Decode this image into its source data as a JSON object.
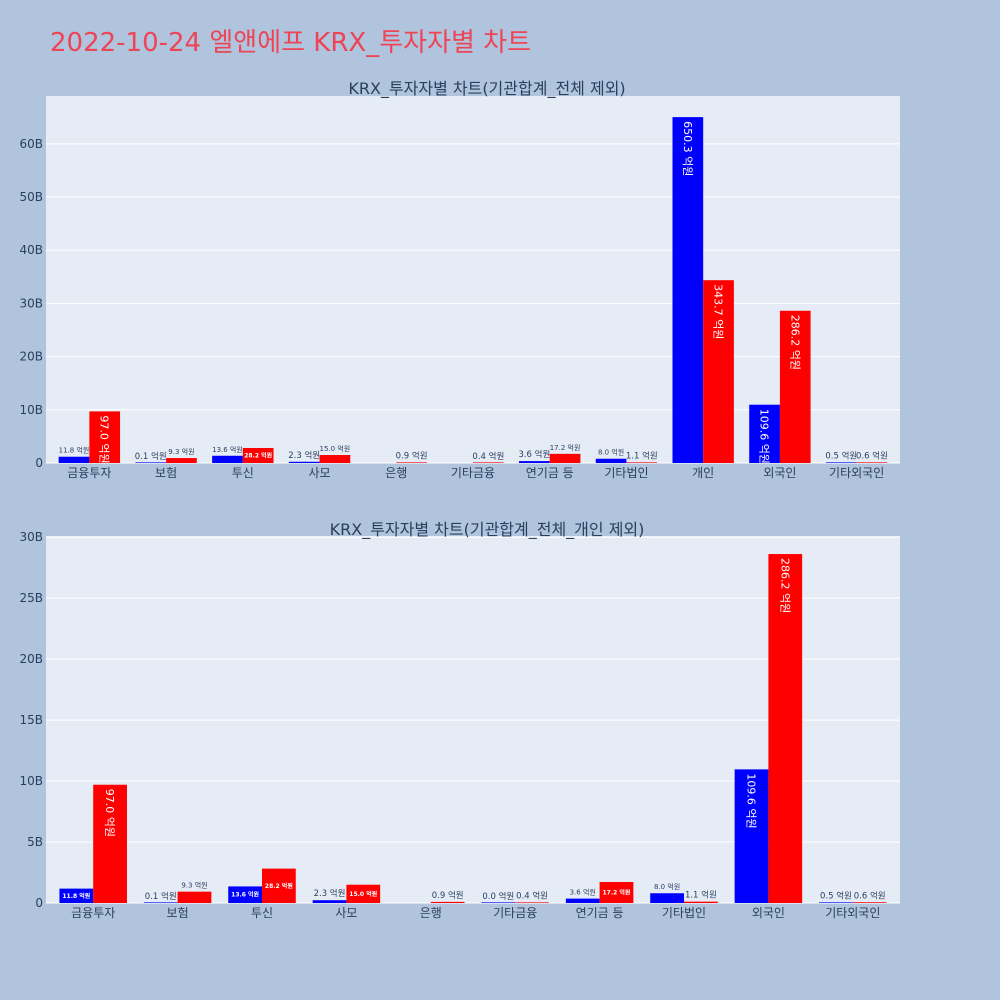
{
  "page_title": "2022-10-24 엘앤에프 KRX_투자자별 차트",
  "colors": {
    "background": "#b0c4de",
    "plot_bg": "#e5ecf6",
    "title": "#ee4455",
    "series_a": "#0000ff",
    "series_b": "#ff0000"
  },
  "chart_data": [
    {
      "type": "bar",
      "title": "KRX_투자자별 차트(기관합계_전체 제외)",
      "categories": [
        "금융투자",
        "보험",
        "투신",
        "사모",
        "은행",
        "기타금융",
        "연기금 등",
        "기타법인",
        "개인",
        "외국인",
        "기타외국인"
      ],
      "ylim": [
        0,
        69
      ],
      "yticks": [
        0,
        10,
        20,
        30,
        40,
        50,
        60
      ],
      "ytick_labels": [
        "0",
        "10B",
        "20B",
        "30B",
        "40B",
        "50B",
        "60B"
      ],
      "grid": true,
      "series": [
        {
          "values": [
            1.18,
            0.01,
            1.36,
            0.23,
            null,
            null,
            0.36,
            0.8,
            65.03,
            10.96,
            0.05
          ],
          "labels": [
            "11.8 억원",
            "0.1 억원",
            "13.6 억원",
            "2.3 억원",
            null,
            null,
            "3.6 억원",
            "8.0 억원",
            "650.3 억원",
            "109.6 억원",
            "0.5 억원"
          ]
        },
        {
          "values": [
            9.7,
            0.93,
            2.82,
            1.5,
            0.09,
            0.04,
            1.72,
            0.11,
            34.37,
            28.62,
            0.06
          ],
          "labels": [
            "97.0 억원",
            "9.3 억원",
            "28.2 억원",
            "15.0 억원",
            "0.9 억원",
            "0.4 억원",
            "17.2 억원",
            "1.1 억원",
            "343.7 억원",
            "286.2 억원",
            "0.6 억원"
          ]
        }
      ]
    },
    {
      "type": "bar",
      "title": "KRX_투자자별 차트(기관합계_전체_개인 제외)",
      "categories": [
        "금융투자",
        "보험",
        "투신",
        "사모",
        "은행",
        "기타금융",
        "연기금 등",
        "기타법인",
        "외국인",
        "기타외국인"
      ],
      "ylim": [
        0,
        30.1
      ],
      "yticks": [
        0,
        5,
        10,
        15,
        20,
        25,
        30
      ],
      "ytick_labels": [
        "0",
        "5B",
        "10B",
        "15B",
        "20B",
        "25B",
        "30B"
      ],
      "grid": true,
      "series": [
        {
          "values": [
            1.18,
            0.01,
            1.36,
            0.23,
            null,
            0.0,
            0.36,
            0.8,
            10.96,
            0.05
          ],
          "labels": [
            "11.8 억원",
            "0.1 억원",
            "13.6 억원",
            "2.3 억원",
            null,
            "0.0 억원",
            "3.6 억원",
            "8.0 억원",
            "109.6 억원",
            "0.5 억원"
          ]
        },
        {
          "values": [
            9.7,
            0.93,
            2.82,
            1.5,
            0.09,
            0.04,
            1.72,
            0.11,
            28.62,
            0.06
          ],
          "labels": [
            "97.0 억원",
            "9.3 억원",
            "28.2 억원",
            "15.0 억원",
            "0.9 억원",
            "0.4 억원",
            "17.2 억원",
            "1.1 억원",
            "286.2 억원",
            "0.6 억원"
          ]
        }
      ]
    }
  ]
}
